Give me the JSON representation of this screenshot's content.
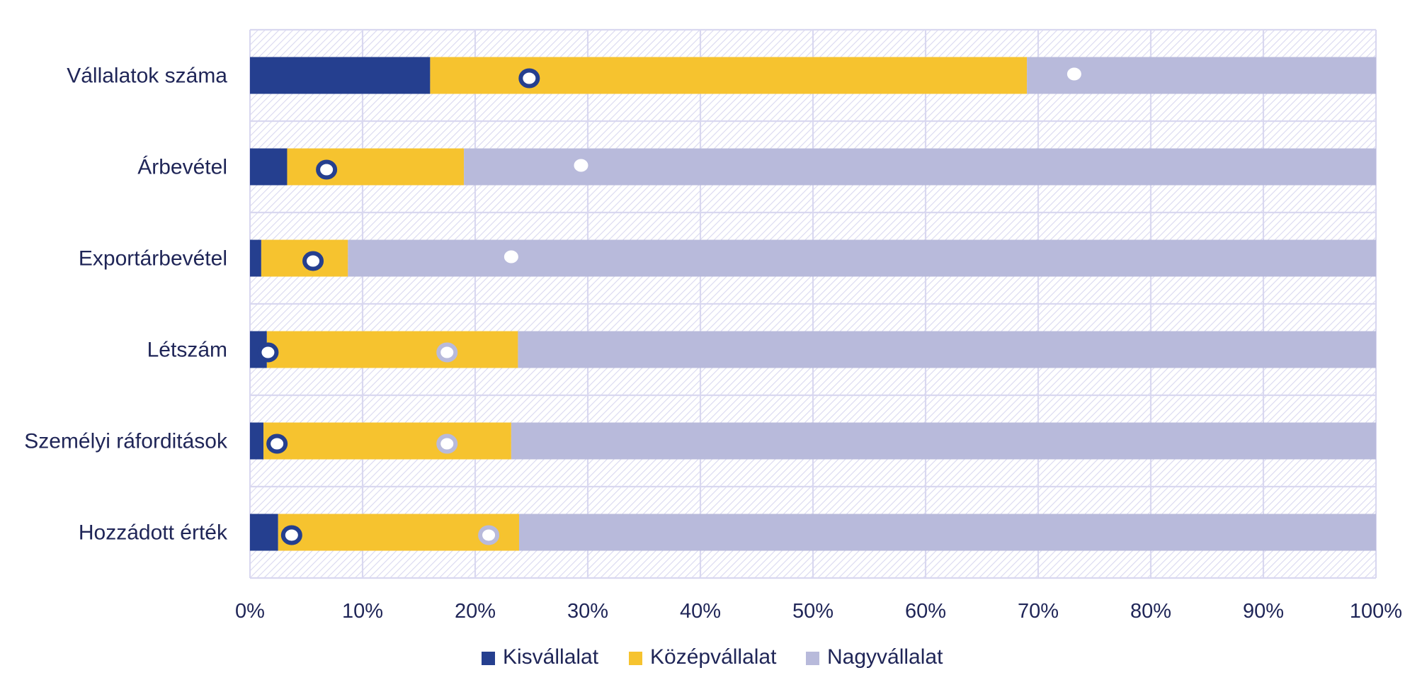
{
  "chart_data": {
    "type": "bar",
    "orientation": "horizontal",
    "stacked": "100%",
    "categories": [
      "Vállalatok száma",
      "Árbevétel",
      "Exportárbevétel",
      "Létszám",
      "Személyi ráforditások",
      "Hozzádott érték"
    ],
    "series": [
      {
        "name": "Kisvállalat",
        "color": "#253f8f",
        "values": [
          16,
          3.3,
          1,
          1.5,
          1.2,
          2.5
        ]
      },
      {
        "name": "Középvállalat",
        "color": "#f6c32f",
        "values": [
          53,
          15.7,
          7.7,
          22.3,
          22,
          21.4
        ]
      },
      {
        "name": "Nagyvállalat",
        "color": "#b8badb",
        "values": [
          31,
          81,
          91.3,
          76.2,
          76.8,
          76.1
        ]
      }
    ],
    "markers": [
      {
        "series": "Kisvállalat",
        "style": "ring",
        "fill": "#ffffff",
        "stroke": "#253f8f",
        "values": [
          24.8,
          6.8,
          5.6,
          1.6,
          2.4,
          3.7
        ]
      },
      {
        "series": "Középvállalat",
        "style": "ring",
        "fill": "#ffffff",
        "stroke": "#b8badb",
        "values": [
          null,
          null,
          null,
          17.5,
          17.5,
          21.2
        ]
      },
      {
        "series": "Nagyvállalat",
        "style": "dot",
        "fill": "#ffffff",
        "stroke": "none",
        "values": [
          73.2,
          29.4,
          23.2,
          null,
          null,
          null
        ]
      }
    ],
    "x_ticks": [
      "0%",
      "10%",
      "20%",
      "30%",
      "40%",
      "50%",
      "60%",
      "70%",
      "80%",
      "90%",
      "100%"
    ],
    "xlim": [
      0,
      100
    ],
    "grid": true,
    "legend_position": "bottom",
    "colors": {
      "grid": "#d9d8f0",
      "hatch": "#d9d8f0",
      "text": "#1f2557"
    }
  }
}
